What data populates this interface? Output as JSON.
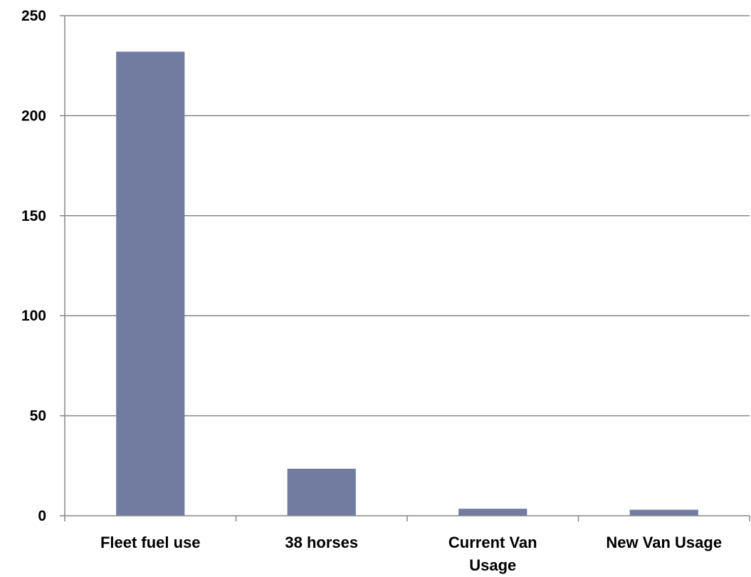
{
  "chart_data": {
    "type": "bar",
    "title": "",
    "xlabel": "",
    "ylabel": "",
    "categories": [
      "Fleet fuel use",
      "38 horses",
      "Current Van Usage",
      "New Van Usage"
    ],
    "category_lines": [
      [
        "Fleet fuel use"
      ],
      [
        "38 horses"
      ],
      [
        "Current Van",
        "Usage"
      ],
      [
        "New Van Usage"
      ]
    ],
    "values": [
      232,
      23.5,
      3.5,
      3
    ],
    "ylim": [
      0,
      250
    ],
    "yticks": [
      0,
      50,
      100,
      150,
      200,
      250
    ],
    "grid": true,
    "legend": "none",
    "bar_color": "#717ca0",
    "grid_color": "#868686",
    "axis_color": "#868686"
  }
}
